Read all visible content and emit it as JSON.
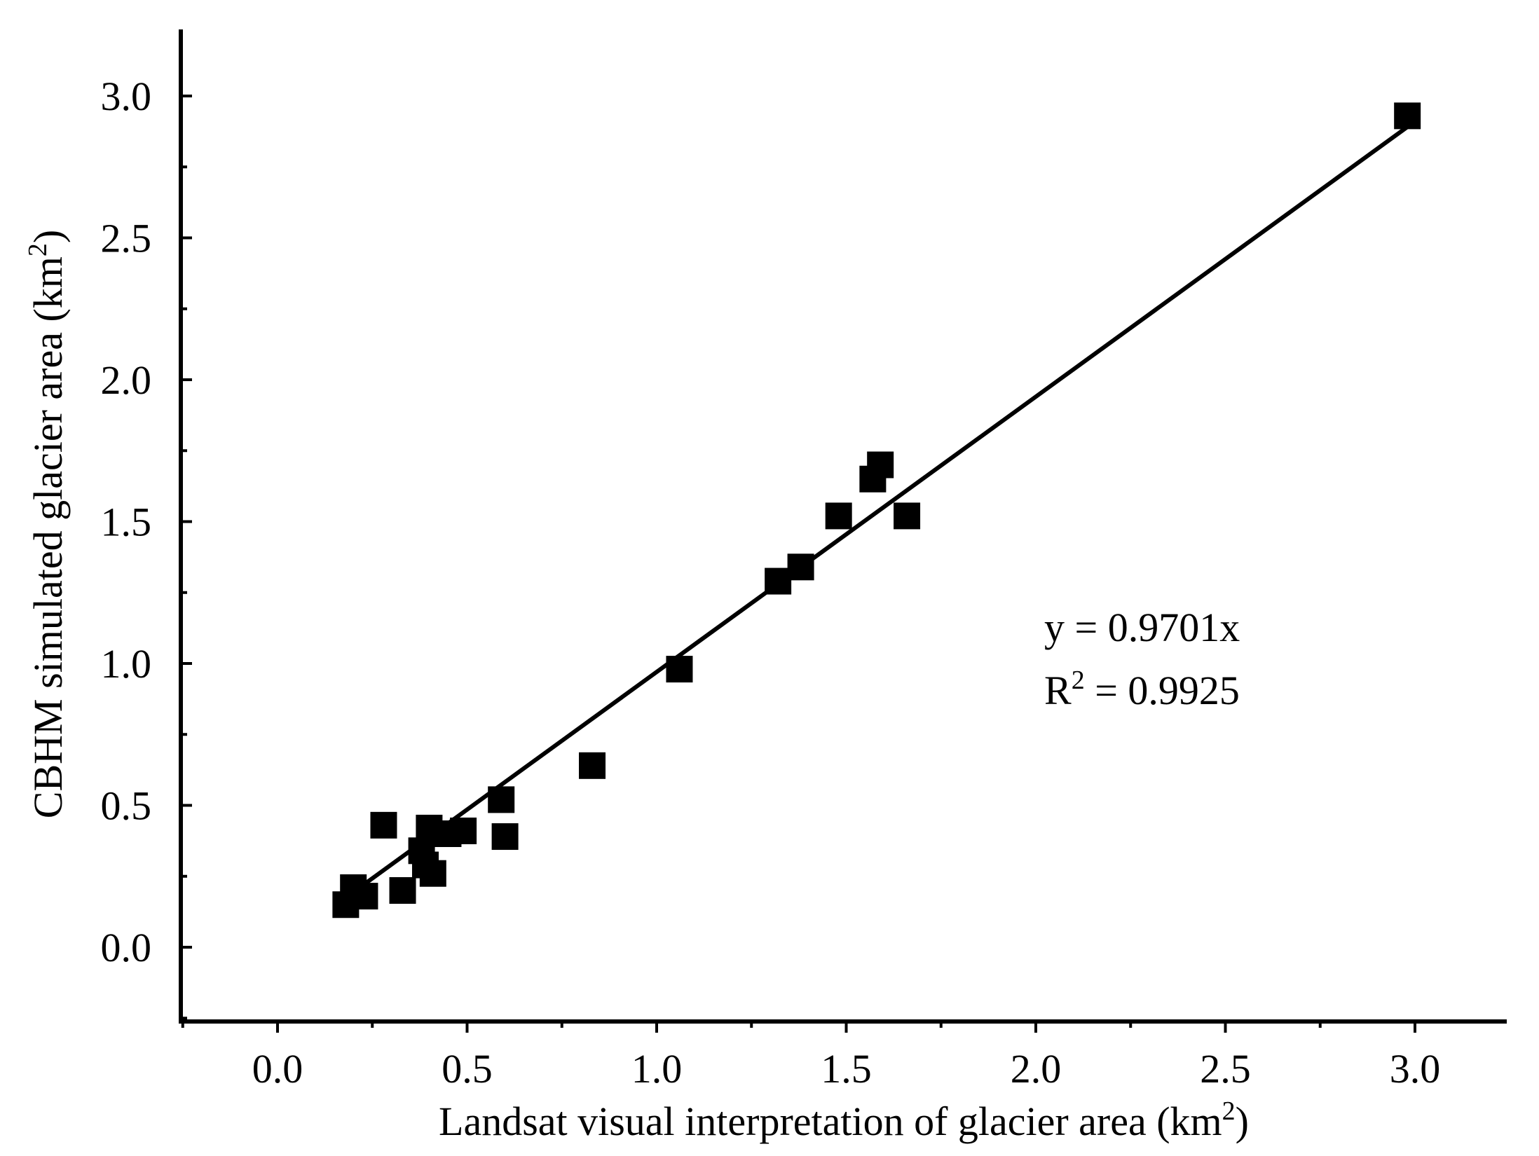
{
  "chart_data": {
    "type": "scatter",
    "title": "",
    "xlabel": {
      "text": "Landsat visual interpretation of glacier area (km",
      "sup": "2",
      "close": ")"
    },
    "ylabel": {
      "text": "CBHM simulated glacier area (km",
      "sup": "2",
      "close": ")"
    },
    "xlim": [
      -0.25,
      3.25
    ],
    "ylim": [
      -0.25,
      3.25
    ],
    "xticks": [
      "0.0",
      "0.5",
      "1.0",
      "1.5",
      "2.0",
      "2.5",
      "3.0"
    ],
    "yticks": [
      "0.0",
      "0.5",
      "1.0",
      "1.5",
      "2.0",
      "2.5",
      "3.0"
    ],
    "grid": false,
    "marker": "square",
    "marker_color": "#000000",
    "series": [
      {
        "x": [
          0.18,
          0.2,
          0.23,
          0.28,
          0.33,
          0.38,
          0.39,
          0.4,
          0.41,
          0.45,
          0.49,
          0.59,
          0.6,
          0.83,
          1.06,
          1.32,
          1.38,
          1.48,
          1.57,
          1.59,
          1.66,
          2.98
        ],
        "y": [
          0.15,
          0.21,
          0.18,
          0.43,
          0.2,
          0.34,
          0.29,
          0.42,
          0.26,
          0.4,
          0.41,
          0.52,
          0.39,
          0.64,
          0.98,
          1.29,
          1.34,
          1.52,
          1.65,
          1.7,
          1.52,
          2.93
        ]
      }
    ],
    "fit_line": {
      "slope": 0.9701,
      "x_range": [
        0.22,
        2.98
      ]
    },
    "annotation": {
      "equation": "y = 0.9701x",
      "r2_prefix": "R",
      "r2_sup": "2",
      "r2_suffix": " = 0.9925"
    }
  }
}
